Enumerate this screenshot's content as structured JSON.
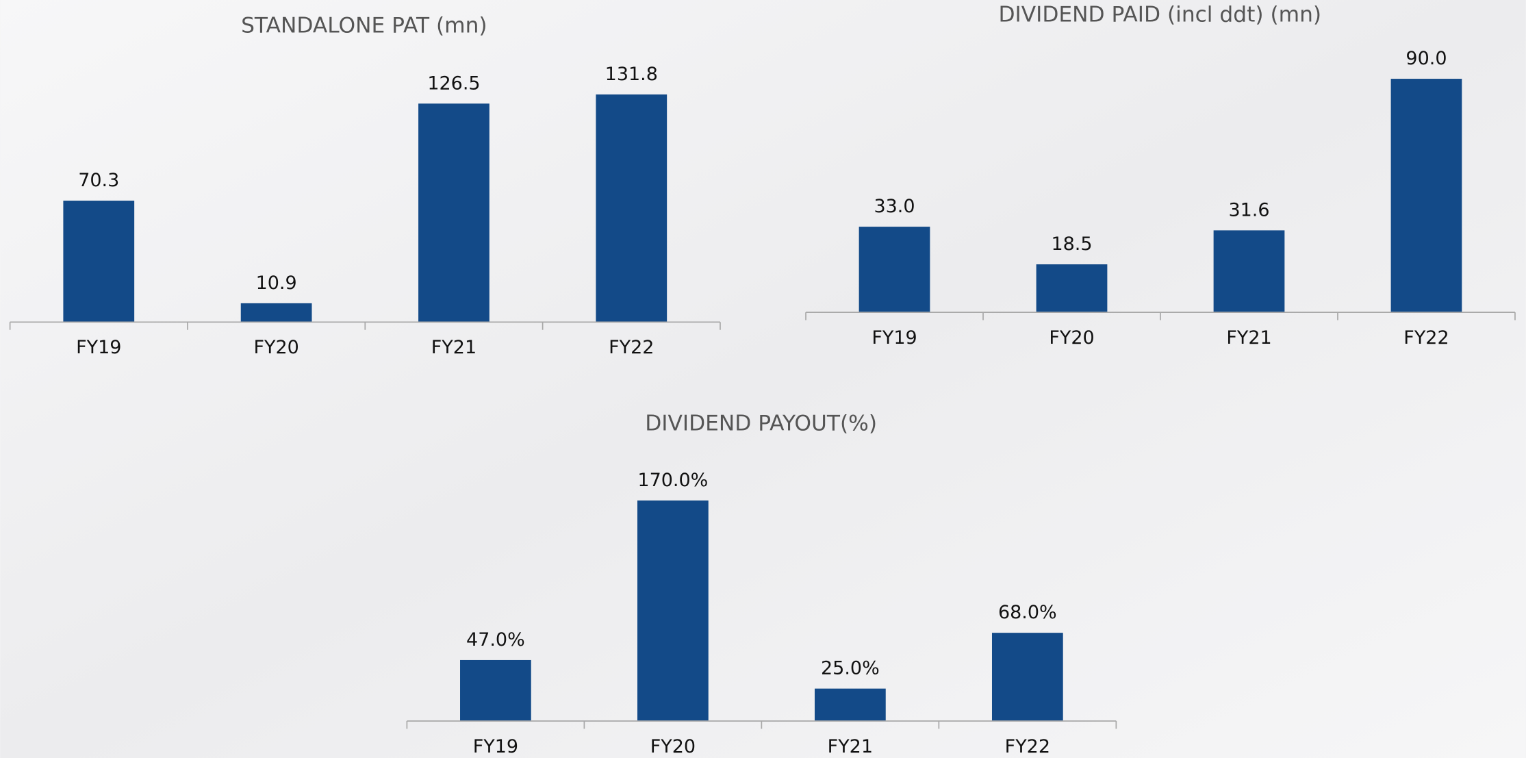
{
  "chart_data": [
    {
      "type": "bar",
      "title": "STANDALONE PAT (mn)",
      "categories": [
        "FY19",
        "FY20",
        "FY21",
        "FY22"
      ],
      "values": [
        70.3,
        10.9,
        126.5,
        131.8
      ],
      "color": "#134a88",
      "ylim": [
        0,
        140
      ]
    },
    {
      "type": "bar",
      "title": "DIVIDEND PAID (incl ddt) (mn)",
      "categories": [
        "FY19",
        "FY20",
        "FY21",
        "FY22"
      ],
      "values": [
        33,
        18.5,
        31.6,
        90
      ],
      "value_labels": [
        "33.0",
        "18.5",
        "31.6",
        "90.0"
      ],
      "color": "#134a88",
      "ylim": [
        0,
        100
      ]
    },
    {
      "type": "bar",
      "title": "DIVIDEND PAYOUT(%)",
      "categories": [
        "FY19",
        "FY20",
        "FY21",
        "FY22"
      ],
      "values": [
        47,
        170,
        25,
        68
      ],
      "value_labels": [
        "47.0%",
        "170.0%",
        "25.0%",
        "68.0%"
      ],
      "color": "#134a88",
      "ylim": [
        0,
        180
      ]
    }
  ]
}
